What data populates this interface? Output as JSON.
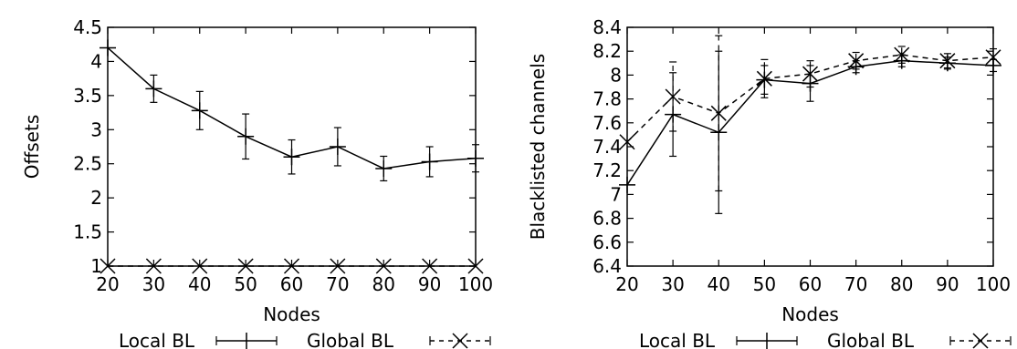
{
  "chart_data": [
    {
      "type": "line",
      "xlabel": "Nodes",
      "ylabel": "Offsets",
      "x": [
        20,
        30,
        40,
        50,
        60,
        70,
        80,
        90,
        100
      ],
      "xlim": [
        20,
        100
      ],
      "ylim": [
        1,
        4.5
      ],
      "xticks": [
        "20",
        "30",
        "40",
        "50",
        "60",
        "70",
        "80",
        "90",
        "100"
      ],
      "yticks": [
        "1",
        "1.5",
        "2",
        "2.5",
        "3",
        "3.5",
        "4",
        "4.5"
      ],
      "ytick_values": [
        1,
        1.5,
        2,
        2.5,
        3,
        3.5,
        4,
        4.5
      ],
      "grid": false,
      "legend_position": "bottom",
      "series": [
        {
          "name": "Local BL",
          "style": "solid-plus",
          "values": [
            4.2,
            3.6,
            3.28,
            2.9,
            2.6,
            2.75,
            2.43,
            2.53,
            2.58
          ],
          "errors": [
            0,
            0.2,
            0.28,
            0.33,
            0.25,
            0.28,
            0.18,
            0.22,
            0.2
          ]
        },
        {
          "name": "Global BL",
          "style": "dashed-x",
          "values": [
            1,
            1,
            1,
            1,
            1,
            1,
            1,
            1,
            1
          ],
          "errors": [
            0,
            0,
            0,
            0,
            0,
            0,
            0,
            0,
            0
          ]
        }
      ]
    },
    {
      "type": "line",
      "xlabel": "Nodes",
      "ylabel": "Blacklisted channels",
      "x": [
        20,
        30,
        40,
        50,
        60,
        70,
        80,
        90,
        100
      ],
      "xlim": [
        20,
        100
      ],
      "ylim": [
        6.4,
        8.4
      ],
      "xticks": [
        "20",
        "30",
        "40",
        "50",
        "60",
        "70",
        "80",
        "90",
        "100"
      ],
      "yticks": [
        "6.4",
        "6.6",
        "6.8",
        "7",
        "7.2",
        "7.4",
        "7.6",
        "7.8",
        "8",
        "8.2",
        "8.4"
      ],
      "ytick_values": [
        6.4,
        6.6,
        6.8,
        7,
        7.2,
        7.4,
        7.6,
        7.8,
        8,
        8.2,
        8.4
      ],
      "grid": false,
      "legend_position": "bottom",
      "series": [
        {
          "name": "Local BL",
          "style": "solid-plus",
          "values": [
            7.08,
            7.67,
            7.52,
            7.96,
            7.93,
            8.07,
            8.12,
            8.1,
            8.08
          ],
          "errors": [
            0,
            0.35,
            0.68,
            0.12,
            0.15,
            0.05,
            0.05,
            0.05,
            0.05
          ]
        },
        {
          "name": "Global BL",
          "style": "dashed-x",
          "values": [
            7.44,
            7.82,
            7.68,
            7.97,
            8.01,
            8.12,
            8.17,
            8.12,
            8.15
          ],
          "errors": [
            0,
            0.29,
            0.65,
            0.16,
            0.11,
            0.07,
            0.07,
            0.06,
            0.07
          ]
        }
      ]
    }
  ]
}
